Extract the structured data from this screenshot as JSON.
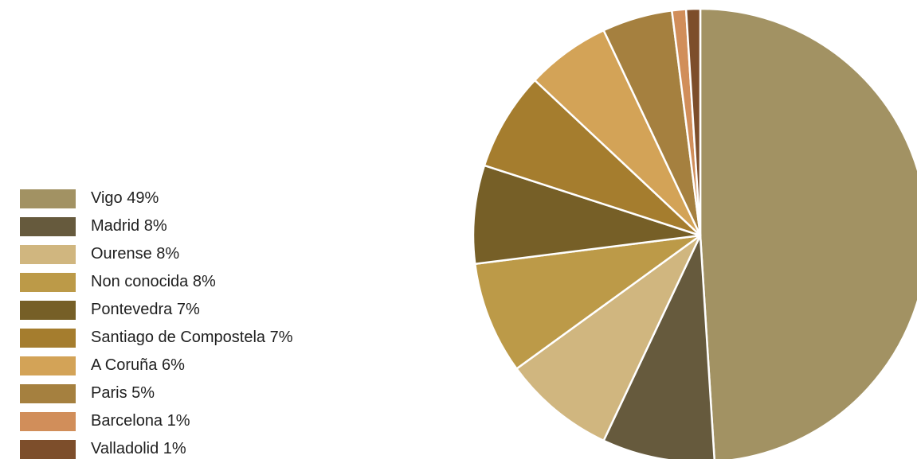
{
  "chart_data": {
    "type": "pie",
    "title": "",
    "legend_position": "left",
    "slices": [
      {
        "label": "Vigo 49%",
        "value": 49,
        "color": "#a29263"
      },
      {
        "label": "Madrid 8%",
        "value": 8,
        "color": "#665a3d"
      },
      {
        "label": "Ourense 8%",
        "value": 8,
        "color": "#d0b67f"
      },
      {
        "label": "Non conocida 8%",
        "value": 8,
        "color": "#bc9a48"
      },
      {
        "label": "Pontevedra 7%",
        "value": 7,
        "color": "#765f27"
      },
      {
        "label": "Santiago de Compostela 7%",
        "value": 7,
        "color": "#a57d2e"
      },
      {
        "label": "A Coruña 6%",
        "value": 6,
        "color": "#d3a357"
      },
      {
        "label": "Paris 5%",
        "value": 5,
        "color": "#a5803f"
      },
      {
        "label": "Barcelona 1%",
        "value": 1,
        "color": "#d18e5a"
      },
      {
        "label": "Valladolid 1%",
        "value": 1,
        "color": "#7d4e2b"
      }
    ]
  }
}
